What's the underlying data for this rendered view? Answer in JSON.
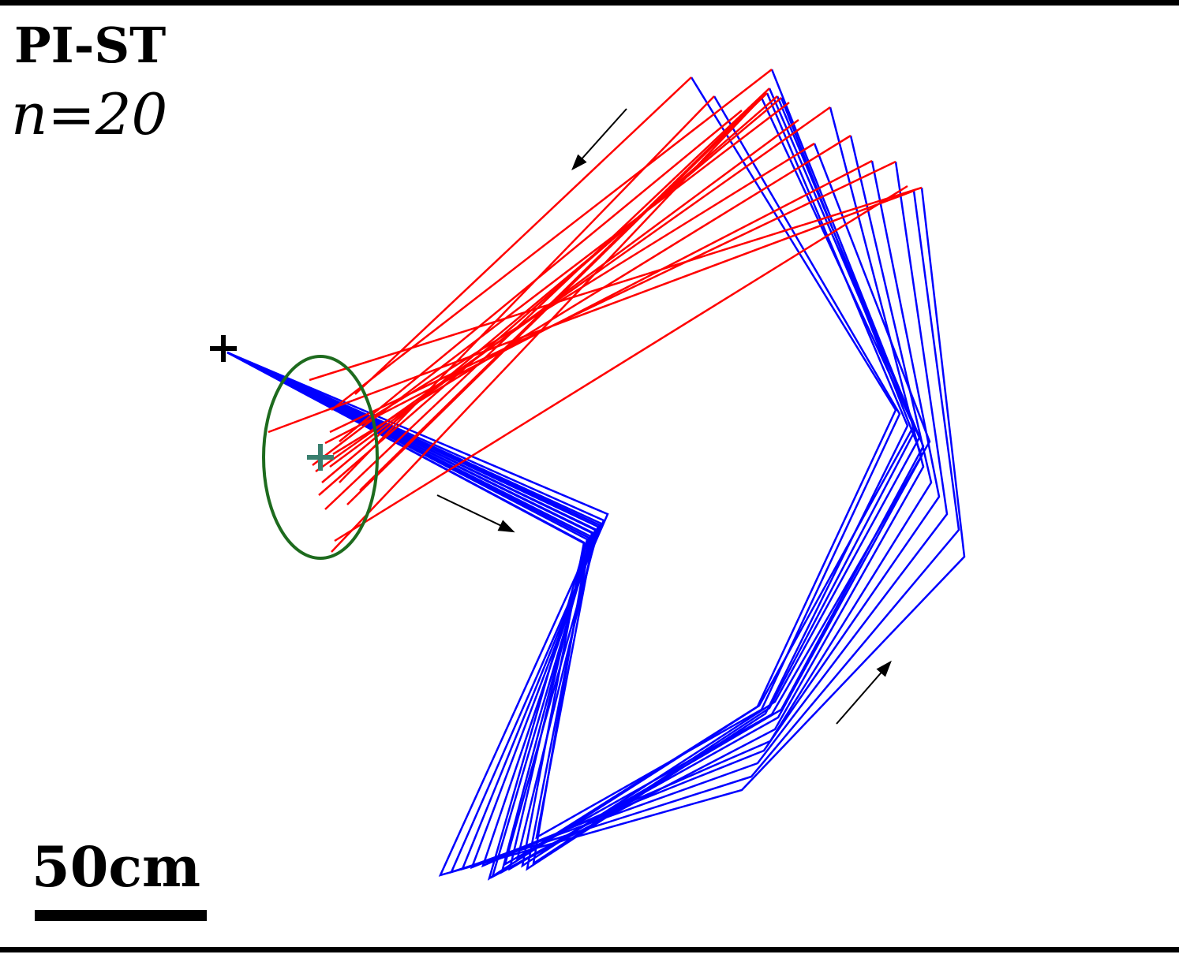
{
  "condition_label": "PI-ST",
  "trials_label": "n=20",
  "scale_label": "50cm",
  "colors": {
    "outward_path": "#0000ff",
    "return_path": "#ff0000",
    "endpoint_ellipse": "#1e6b1e",
    "endpoint_mean_marker": "#3a7f6f",
    "start_marker": "#000000",
    "direction_arrows": "#000000"
  },
  "legend_items": [
    {
      "name": "start-marker-icon",
      "shape": "plus"
    },
    {
      "name": "endpoint-mean-icon",
      "shape": "plus"
    }
  ]
}
